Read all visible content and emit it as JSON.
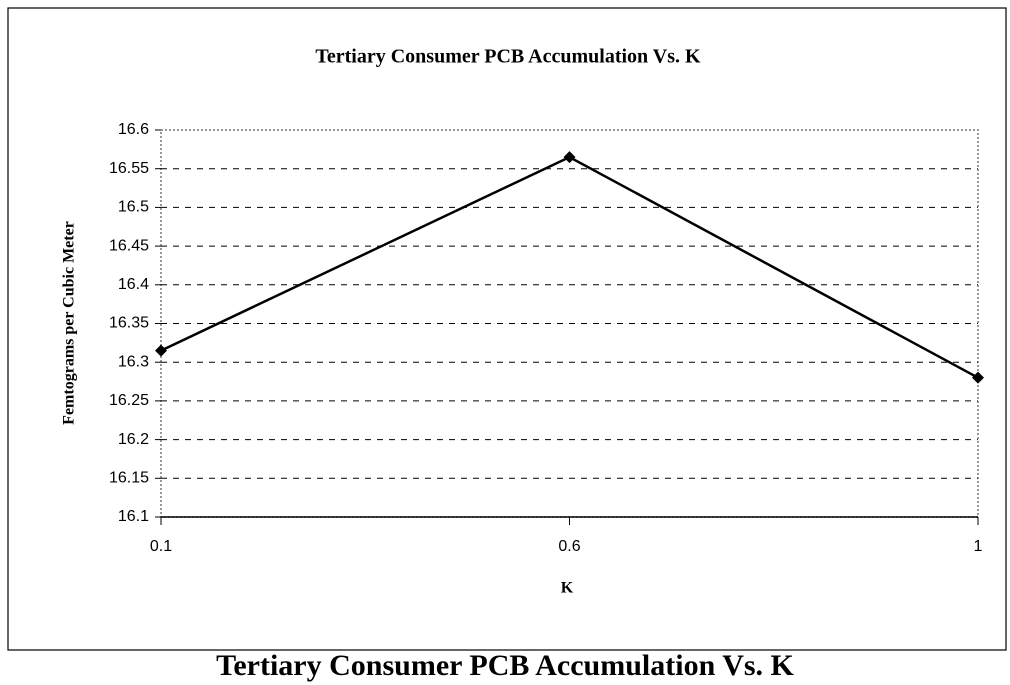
{
  "chart_data": {
    "type": "line",
    "title": "Tertiary Consumer PCB Accumulation Vs. K",
    "caption": "Tertiary Consumer PCB Accumulation Vs. K",
    "x_label": "K",
    "y_label": "Femtograms per Cubic Meter",
    "categories": [
      "0.1",
      "0.6",
      "1"
    ],
    "values": [
      16.315,
      16.565,
      16.28
    ],
    "color": "#000000",
    "ylim": [
      16.1,
      16.6
    ],
    "yticks": [
      16.1,
      16.15,
      16.2,
      16.25,
      16.3,
      16.35,
      16.4,
      16.45,
      16.5,
      16.55,
      16.6
    ],
    "grid": true
  }
}
